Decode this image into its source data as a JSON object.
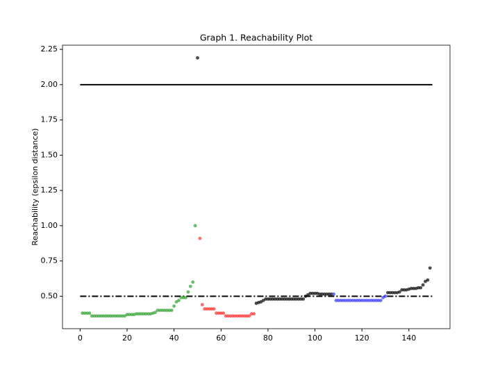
{
  "chart_data": {
    "type": "scatter",
    "title": "Graph 1. Reachability Plot",
    "y_label": "Reachability (epsilon distance)",
    "xlim": [
      -7.5,
      157.5
    ],
    "ylim": [
      0.27,
      2.28
    ],
    "xticks": [
      0,
      20,
      40,
      60,
      80,
      100,
      120,
      140
    ],
    "yticks": [
      {
        "value": 0.5,
        "label": "0.50"
      },
      0.75,
      {
        "value": 1.0,
        "label": "1.00"
      },
      1.25,
      {
        "value": 1.5,
        "label": "1.50"
      },
      1.75,
      {
        "value": 2.0,
        "label": "2.00"
      },
      2.25
    ],
    "hlines": [
      {
        "y": 2.0,
        "xmin": 0,
        "xmax": 150,
        "style": "solid",
        "color": "#000000"
      },
      {
        "y": 0.5,
        "xmin": 0,
        "xmax": 150,
        "style": "dashdot",
        "color": "#000000"
      }
    ],
    "series": [
      {
        "color": "#2ca02c",
        "x": [
          1,
          2,
          3,
          4,
          5,
          6,
          7,
          8,
          9,
          10,
          11,
          12,
          13,
          14,
          15,
          16,
          17,
          18,
          19,
          20,
          21,
          22,
          23,
          24,
          25,
          26,
          27,
          28,
          29,
          30,
          31,
          32,
          33,
          34,
          35,
          36,
          37,
          38,
          39,
          40,
          41,
          42,
          43,
          44,
          45,
          46,
          47,
          48,
          49
        ],
        "values": [
          0.38,
          0.38,
          0.38,
          0.38,
          0.36,
          0.36,
          0.36,
          0.36,
          0.36,
          0.36,
          0.36,
          0.36,
          0.36,
          0.36,
          0.36,
          0.36,
          0.36,
          0.36,
          0.36,
          0.37,
          0.37,
          0.37,
          0.37,
          0.375,
          0.375,
          0.375,
          0.375,
          0.375,
          0.375,
          0.375,
          0.38,
          0.385,
          0.4,
          0.4,
          0.4,
          0.4,
          0.4,
          0.4,
          0.4,
          0.43,
          0.46,
          0.47,
          0.49,
          0.49,
          0.49,
          0.53,
          0.57,
          0.6,
          1.0
        ]
      },
      {
        "color": "#ff2a2a",
        "x": [
          51,
          52,
          53,
          54,
          55,
          56,
          57,
          58,
          59,
          60,
          61,
          62,
          63,
          64,
          65,
          66,
          67,
          68,
          69,
          70,
          71,
          72,
          73,
          74
        ],
        "values": [
          0.91,
          0.44,
          0.41,
          0.41,
          0.41,
          0.41,
          0.41,
          0.38,
          0.38,
          0.38,
          0.38,
          0.36,
          0.36,
          0.36,
          0.36,
          0.36,
          0.36,
          0.36,
          0.36,
          0.36,
          0.36,
          0.36,
          0.375,
          0.375
        ]
      },
      {
        "color": "#000000",
        "x": [
          50,
          75,
          76,
          77,
          78,
          79,
          80,
          81,
          82,
          83,
          84,
          85,
          86,
          87,
          88,
          89,
          90,
          91,
          92,
          93,
          94,
          95,
          96,
          97,
          98,
          99,
          100,
          101,
          102,
          103,
          104,
          105,
          106,
          107,
          131,
          132,
          133,
          134,
          135,
          136,
          137,
          138,
          139,
          140,
          141,
          142,
          143,
          144,
          145,
          146,
          147,
          148,
          149
        ],
        "values": [
          2.19,
          0.45,
          0.455,
          0.46,
          0.47,
          0.48,
          0.48,
          0.48,
          0.48,
          0.48,
          0.48,
          0.48,
          0.48,
          0.48,
          0.48,
          0.48,
          0.48,
          0.48,
          0.48,
          0.48,
          0.48,
          0.48,
          0.5,
          0.51,
          0.52,
          0.52,
          0.52,
          0.52,
          0.515,
          0.515,
          0.515,
          0.515,
          0.515,
          0.515,
          0.525,
          0.525,
          0.525,
          0.525,
          0.525,
          0.53,
          0.545,
          0.545,
          0.545,
          0.55,
          0.555,
          0.555,
          0.555,
          0.56,
          0.56,
          0.58,
          0.605,
          0.615,
          0.7
        ]
      },
      {
        "color": "#3333ff",
        "x": [
          108,
          109,
          110,
          111,
          112,
          113,
          114,
          115,
          116,
          117,
          118,
          119,
          120,
          121,
          122,
          123,
          124,
          125,
          126,
          127,
          128,
          129,
          130
        ],
        "values": [
          0.515,
          0.47,
          0.47,
          0.47,
          0.47,
          0.47,
          0.47,
          0.47,
          0.47,
          0.47,
          0.47,
          0.47,
          0.47,
          0.47,
          0.47,
          0.47,
          0.47,
          0.47,
          0.47,
          0.47,
          0.47,
          0.49,
          0.5
        ]
      }
    ]
  }
}
